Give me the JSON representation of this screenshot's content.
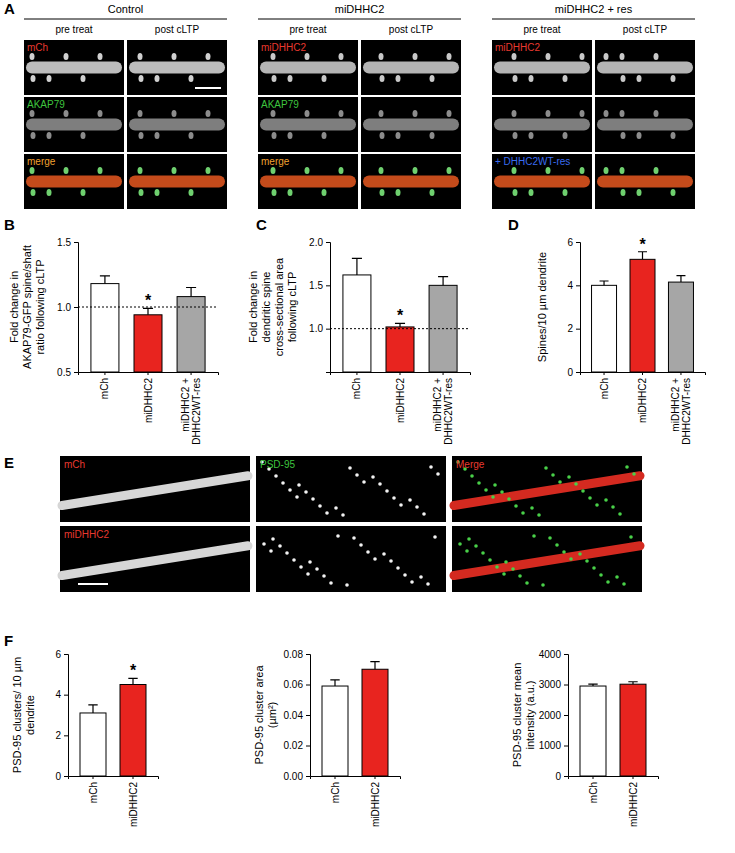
{
  "figure": {
    "panel_labels": [
      "A",
      "B",
      "C",
      "D",
      "E",
      "F"
    ],
    "panel_a": {
      "groups": [
        {
          "title": "Control",
          "columns": [
            "pre treat",
            "post cLTP"
          ],
          "rows": [
            "mCh",
            "AKAP79",
            "merge"
          ]
        },
        {
          "title": "miDHHC2",
          "columns": [
            "pre treat",
            "post cLTP"
          ],
          "rows": [
            "miDHHC2",
            "AKAP79",
            "merge"
          ]
        },
        {
          "title": "miDHHC2 + res",
          "columns": [
            "pre treat",
            "post cLTP"
          ],
          "rows": [
            "miDHHC2",
            null,
            "+ DHHC2WT-res"
          ]
        }
      ]
    },
    "panel_e": {
      "rows": [
        [
          "mCh",
          "PSD-95",
          "Merge"
        ],
        [
          "miDHHC2",
          null,
          null
        ]
      ]
    }
  },
  "chart_data": [
    {
      "type": "bar",
      "y_label": "Fold change in AKAP79-GFP spine/shaft ratio following cLTP",
      "categories": [
        "mCh",
        "miDHHC2",
        "miDHHC2 + DHHC2WT-res"
      ],
      "values": [
        1.18,
        0.94,
        1.08
      ],
      "errors": [
        0.06,
        0.05,
        0.07
      ],
      "colors": [
        "#ffffff",
        "#e8241f",
        "#a6a6a6"
      ],
      "ylim": [
        0.5,
        1.5
      ],
      "yticks": [
        0.5,
        {
          "value": 1,
          "label": "1.0"
        },
        1.5
      ],
      "reference_line": 1,
      "significance": [
        null,
        "*",
        null
      ]
    },
    {
      "type": "bar",
      "y_label": "Fold change in dendritic spine cross-sectional area following cLTP",
      "categories": [
        "mCh",
        "miDHHC2",
        "miDHHC2 + DHHC2WT-res"
      ],
      "values": [
        1.62,
        1.02,
        1.5
      ],
      "errors": [
        0.19,
        0.04,
        0.1
      ],
      "colors": [
        "#ffffff",
        "#e8241f",
        "#a6a6a6"
      ],
      "ylim": [
        0.5,
        2
      ],
      "yticks": [
        {
          "value": 1,
          "label": "1.0"
        },
        1.5,
        {
          "value": 2,
          "label": "2.0"
        }
      ],
      "reference_line": 1,
      "significance": [
        null,
        "*",
        null
      ]
    },
    {
      "type": "bar",
      "y_label": "Spines/10 µm dendrite",
      "categories": [
        "mCh",
        "miDHHC2",
        "miDHHC2 + DHHC2WT-res"
      ],
      "values": [
        4.0,
        5.2,
        4.15
      ],
      "errors": [
        0.2,
        0.35,
        0.3
      ],
      "colors": [
        "#ffffff",
        "#e8241f",
        "#a6a6a6"
      ],
      "ylim": [
        0,
        6
      ],
      "yticks": [
        0,
        2,
        4,
        6
      ],
      "significance": [
        null,
        "*",
        null
      ]
    },
    {
      "type": "bar",
      "y_label": "PSD-95 clusters/ 10 µm dendrite",
      "categories": [
        "mCh",
        "miDHHC2"
      ],
      "values": [
        3.1,
        4.5
      ],
      "errors": [
        0.4,
        0.3
      ],
      "colors": [
        "#ffffff",
        "#e8241f"
      ],
      "ylim": [
        0,
        6
      ],
      "yticks": [
        0,
        2,
        4,
        6
      ],
      "significance": [
        null,
        "*"
      ]
    },
    {
      "type": "bar",
      "y_label": "PSD-95 cluster area (µm²)",
      "categories": [
        "mCh",
        "miDHHC2"
      ],
      "values": [
        0.059,
        0.07
      ],
      "errors": [
        0.004,
        0.005
      ],
      "colors": [
        "#ffffff",
        "#e8241f"
      ],
      "ylim": [
        0,
        0.08
      ],
      "yticks": [
        {
          "value": 0,
          "label": "0.00"
        },
        0.02,
        0.04,
        0.06,
        0.08
      ]
    },
    {
      "type": "bar",
      "y_label": "PSD-95 cluster mean intensity (a.u.)",
      "categories": [
        "mCh",
        "miDHHC2"
      ],
      "values": [
        2950,
        3010
      ],
      "errors": [
        60,
        80
      ],
      "colors": [
        "#ffffff",
        "#e8241f"
      ],
      "ylim": [
        0,
        4000
      ],
      "yticks": [
        0,
        1000,
        2000,
        3000,
        4000
      ]
    }
  ]
}
